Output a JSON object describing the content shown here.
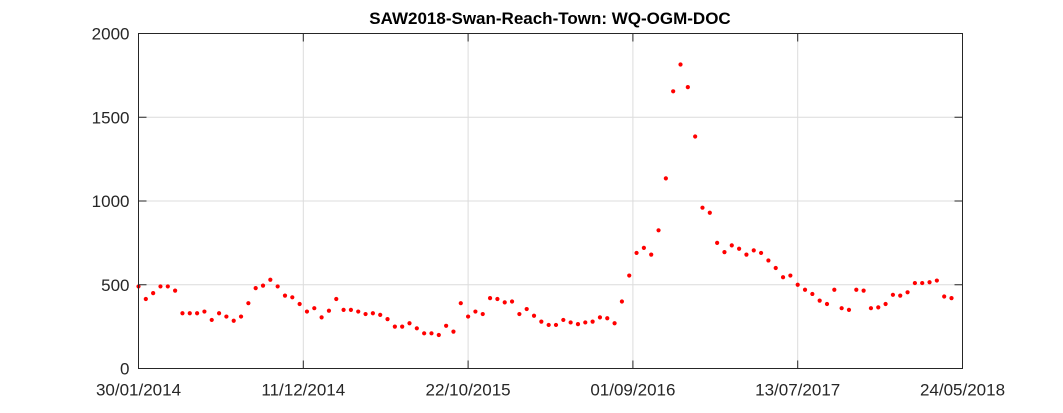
{
  "chart_data": {
    "type": "scatter",
    "title": "SAW2018-Swan-Reach-Town: WQ-OGM-DOC",
    "xlabel": "",
    "ylabel": "",
    "xlim": [
      "2014-01-30",
      "2018-05-24"
    ],
    "ylim": [
      0,
      2000
    ],
    "x_ticks": [
      {
        "date": "2014-01-30",
        "label": "30/01/2014"
      },
      {
        "date": "2014-12-11",
        "label": "11/12/2014"
      },
      {
        "date": "2015-10-22",
        "label": "22/10/2015"
      },
      {
        "date": "2016-09-01",
        "label": "01/09/2016"
      },
      {
        "date": "2017-07-13",
        "label": "13/07/2017"
      },
      {
        "date": "2018-05-24",
        "label": "24/05/2018"
      }
    ],
    "y_ticks": [
      0,
      500,
      1000,
      1500,
      2000
    ],
    "grid": true,
    "marker_color": "#ff0000",
    "series": [
      {
        "points": [
          [
            "2014-01-30",
            490
          ],
          [
            "2014-02-13",
            415
          ],
          [
            "2014-02-27",
            450
          ],
          [
            "2014-03-13",
            490
          ],
          [
            "2014-03-27",
            490
          ],
          [
            "2014-04-10",
            465
          ],
          [
            "2014-04-24",
            330
          ],
          [
            "2014-05-08",
            330
          ],
          [
            "2014-05-22",
            330
          ],
          [
            "2014-06-05",
            340
          ],
          [
            "2014-06-19",
            290
          ],
          [
            "2014-07-03",
            330
          ],
          [
            "2014-07-17",
            310
          ],
          [
            "2014-07-31",
            285
          ],
          [
            "2014-08-14",
            310
          ],
          [
            "2014-08-28",
            390
          ],
          [
            "2014-09-11",
            480
          ],
          [
            "2014-09-25",
            495
          ],
          [
            "2014-10-09",
            530
          ],
          [
            "2014-10-23",
            490
          ],
          [
            "2014-11-06",
            435
          ],
          [
            "2014-11-20",
            425
          ],
          [
            "2014-12-04",
            385
          ],
          [
            "2014-12-18",
            340
          ],
          [
            "2015-01-01",
            360
          ],
          [
            "2015-01-15",
            305
          ],
          [
            "2015-01-29",
            345
          ],
          [
            "2015-02-12",
            415
          ],
          [
            "2015-02-26",
            350
          ],
          [
            "2015-03-12",
            350
          ],
          [
            "2015-03-26",
            340
          ],
          [
            "2015-04-09",
            325
          ],
          [
            "2015-04-23",
            330
          ],
          [
            "2015-05-07",
            320
          ],
          [
            "2015-05-21",
            295
          ],
          [
            "2015-06-04",
            250
          ],
          [
            "2015-06-18",
            250
          ],
          [
            "2015-07-02",
            270
          ],
          [
            "2015-07-16",
            240
          ],
          [
            "2015-07-30",
            210
          ],
          [
            "2015-08-13",
            210
          ],
          [
            "2015-08-27",
            200
          ],
          [
            "2015-09-10",
            255
          ],
          [
            "2015-09-24",
            220
          ],
          [
            "2015-10-08",
            390
          ],
          [
            "2015-10-22",
            310
          ],
          [
            "2015-11-05",
            340
          ],
          [
            "2015-11-19",
            325
          ],
          [
            "2015-12-03",
            420
          ],
          [
            "2015-12-17",
            415
          ],
          [
            "2015-12-31",
            395
          ],
          [
            "2016-01-14",
            400
          ],
          [
            "2016-01-28",
            325
          ],
          [
            "2016-02-11",
            355
          ],
          [
            "2016-02-25",
            315
          ],
          [
            "2016-03-10",
            280
          ],
          [
            "2016-03-24",
            260
          ],
          [
            "2016-04-07",
            260
          ],
          [
            "2016-04-21",
            290
          ],
          [
            "2016-05-05",
            275
          ],
          [
            "2016-05-19",
            265
          ],
          [
            "2016-06-02",
            275
          ],
          [
            "2016-06-16",
            280
          ],
          [
            "2016-06-30",
            305
          ],
          [
            "2016-07-14",
            300
          ],
          [
            "2016-07-28",
            270
          ],
          [
            "2016-08-11",
            400
          ],
          [
            "2016-08-25",
            555
          ],
          [
            "2016-09-08",
            690
          ],
          [
            "2016-09-22",
            720
          ],
          [
            "2016-10-06",
            680
          ],
          [
            "2016-10-20",
            825
          ],
          [
            "2016-11-03",
            1135
          ],
          [
            "2016-11-17",
            1655
          ],
          [
            "2016-12-01",
            1815
          ],
          [
            "2016-12-15",
            1680
          ],
          [
            "2016-12-29",
            1385
          ],
          [
            "2017-01-12",
            960
          ],
          [
            "2017-01-26",
            930
          ],
          [
            "2017-02-09",
            750
          ],
          [
            "2017-02-23",
            695
          ],
          [
            "2017-03-09",
            735
          ],
          [
            "2017-03-23",
            715
          ],
          [
            "2017-04-06",
            680
          ],
          [
            "2017-04-20",
            705
          ],
          [
            "2017-05-04",
            690
          ],
          [
            "2017-05-18",
            645
          ],
          [
            "2017-06-01",
            600
          ],
          [
            "2017-06-15",
            545
          ],
          [
            "2017-06-29",
            555
          ],
          [
            "2017-07-13",
            500
          ],
          [
            "2017-07-27",
            470
          ],
          [
            "2017-08-10",
            445
          ],
          [
            "2017-08-24",
            405
          ],
          [
            "2017-09-07",
            385
          ],
          [
            "2017-09-21",
            470
          ],
          [
            "2017-10-05",
            360
          ],
          [
            "2017-10-19",
            350
          ],
          [
            "2017-11-02",
            470
          ],
          [
            "2017-11-16",
            465
          ],
          [
            "2017-11-30",
            360
          ],
          [
            "2017-12-14",
            365
          ],
          [
            "2017-12-28",
            385
          ],
          [
            "2018-01-11",
            440
          ],
          [
            "2018-01-25",
            435
          ],
          [
            "2018-02-08",
            455
          ],
          [
            "2018-02-22",
            510
          ],
          [
            "2018-03-08",
            510
          ],
          [
            "2018-03-22",
            515
          ],
          [
            "2018-04-05",
            525
          ],
          [
            "2018-04-19",
            430
          ],
          [
            "2018-05-03",
            420
          ]
        ]
      }
    ]
  }
}
